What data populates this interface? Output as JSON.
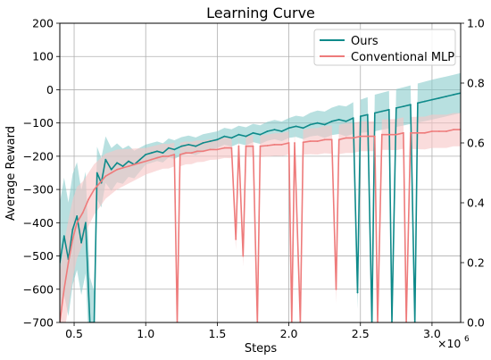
{
  "chart_data": {
    "type": "line",
    "title": "Learning Curve",
    "xlabel": "Steps",
    "ylabel": "Average Reward",
    "x_multiplier_label": "×10",
    "x_multiplier_exp": "6",
    "xlim": [
      0.4,
      3.2
    ],
    "ylim": [
      -700,
      200
    ],
    "y2lim": [
      0.0,
      1.0
    ],
    "xticks": [
      "0.5",
      "1.0",
      "1.5",
      "2.0",
      "2.5",
      "3.0"
    ],
    "yticks": [
      "200",
      "100",
      "0",
      "−100",
      "−200",
      "−300",
      "−400",
      "−500",
      "−600",
      "−700"
    ],
    "y2ticks": [
      "1.0",
      "0.8",
      "0.6",
      "0.4",
      "0.2",
      "0.0"
    ],
    "grid": true,
    "legend_position": "top-right",
    "series": [
      {
        "name": "Ours",
        "color": "#0e8a8a",
        "band_color": "#88cccc",
        "points": [
          [
            0.4,
            -520
          ],
          [
            0.43,
            -440
          ],
          [
            0.46,
            -510
          ],
          [
            0.49,
            -420
          ],
          [
            0.52,
            -380
          ],
          [
            0.55,
            -460
          ],
          [
            0.58,
            -400
          ],
          [
            0.61,
            -700
          ],
          [
            0.64,
            -700
          ],
          [
            0.66,
            -250
          ],
          [
            0.69,
            -280
          ],
          [
            0.72,
            -210
          ],
          [
            0.76,
            -240
          ],
          [
            0.8,
            -220
          ],
          [
            0.84,
            -230
          ],
          [
            0.88,
            -215
          ],
          [
            0.92,
            -225
          ],
          [
            0.96,
            -210
          ],
          [
            1.0,
            -195
          ],
          [
            1.04,
            -190
          ],
          [
            1.08,
            -185
          ],
          [
            1.12,
            -190
          ],
          [
            1.16,
            -175
          ],
          [
            1.2,
            -180
          ],
          [
            1.25,
            -170
          ],
          [
            1.3,
            -165
          ],
          [
            1.35,
            -170
          ],
          [
            1.4,
            -160
          ],
          [
            1.45,
            -155
          ],
          [
            1.5,
            -150
          ],
          [
            1.55,
            -140
          ],
          [
            1.6,
            -145
          ],
          [
            1.65,
            -135
          ],
          [
            1.7,
            -140
          ],
          [
            1.75,
            -130
          ],
          [
            1.8,
            -135
          ],
          [
            1.85,
            -125
          ],
          [
            1.9,
            -120
          ],
          [
            1.95,
            -125
          ],
          [
            2.0,
            -115
          ],
          [
            2.05,
            -110
          ],
          [
            2.1,
            -115
          ],
          [
            2.15,
            -105
          ],
          [
            2.2,
            -100
          ],
          [
            2.25,
            -105
          ],
          [
            2.3,
            -95
          ],
          [
            2.35,
            -90
          ],
          [
            2.4,
            -95
          ],
          [
            2.45,
            -85
          ],
          [
            2.48,
            -610
          ],
          [
            2.5,
            -80
          ],
          [
            2.55,
            -75
          ],
          [
            2.58,
            -700
          ],
          [
            2.6,
            -70
          ],
          [
            2.65,
            -65
          ],
          [
            2.7,
            -60
          ],
          [
            2.72,
            -700
          ],
          [
            2.75,
            -55
          ],
          [
            2.8,
            -50
          ],
          [
            2.85,
            -45
          ],
          [
            2.88,
            -700
          ],
          [
            2.9,
            -40
          ],
          [
            2.95,
            -35
          ],
          [
            3.0,
            -30
          ],
          [
            3.05,
            -25
          ],
          [
            3.1,
            -20
          ],
          [
            3.15,
            -15
          ],
          [
            3.2,
            -10
          ]
        ],
        "band_width": [
          [
            0.4,
            180
          ],
          [
            0.6,
            150
          ],
          [
            0.65,
            80
          ],
          [
            1.0,
            30
          ],
          [
            1.5,
            25
          ],
          [
            2.0,
            30
          ],
          [
            2.4,
            45
          ],
          [
            2.6,
            55
          ],
          [
            3.0,
            60
          ],
          [
            3.2,
            60
          ]
        ]
      },
      {
        "name": "Conventional MLP",
        "color": "#ee7b7b",
        "band_color": "#f7c4c4",
        "points": [
          [
            0.4,
            -700
          ],
          [
            0.43,
            -600
          ],
          [
            0.46,
            -520
          ],
          [
            0.49,
            -450
          ],
          [
            0.52,
            -400
          ],
          [
            0.56,
            -370
          ],
          [
            0.6,
            -330
          ],
          [
            0.64,
            -300
          ],
          [
            0.68,
            -280
          ],
          [
            0.72,
            -260
          ],
          [
            0.76,
            -250
          ],
          [
            0.8,
            -240
          ],
          [
            0.84,
            -235
          ],
          [
            0.88,
            -230
          ],
          [
            0.92,
            -225
          ],
          [
            0.96,
            -220
          ],
          [
            1.0,
            -215
          ],
          [
            1.04,
            -210
          ],
          [
            1.08,
            -205
          ],
          [
            1.12,
            -200
          ],
          [
            1.16,
            -200
          ],
          [
            1.2,
            -195
          ],
          [
            1.22,
            -700
          ],
          [
            1.24,
            -195
          ],
          [
            1.28,
            -190
          ],
          [
            1.32,
            -190
          ],
          [
            1.36,
            -185
          ],
          [
            1.4,
            -185
          ],
          [
            1.45,
            -180
          ],
          [
            1.5,
            -180
          ],
          [
            1.55,
            -175
          ],
          [
            1.6,
            -175
          ],
          [
            1.63,
            -450
          ],
          [
            1.65,
            -170
          ],
          [
            1.68,
            -500
          ],
          [
            1.7,
            -170
          ],
          [
            1.75,
            -170
          ],
          [
            1.78,
            -700
          ],
          [
            1.8,
            -170
          ],
          [
            1.85,
            -168
          ],
          [
            1.9,
            -165
          ],
          [
            1.95,
            -165
          ],
          [
            2.0,
            -160
          ],
          [
            2.02,
            -700
          ],
          [
            2.04,
            -160
          ],
          [
            2.08,
            -700
          ],
          [
            2.1,
            -158
          ],
          [
            2.15,
            -155
          ],
          [
            2.2,
            -155
          ],
          [
            2.25,
            -150
          ],
          [
            2.3,
            -150
          ],
          [
            2.33,
            -600
          ],
          [
            2.35,
            -150
          ],
          [
            2.4,
            -145
          ],
          [
            2.45,
            -145
          ],
          [
            2.5,
            -140
          ],
          [
            2.55,
            -140
          ],
          [
            2.6,
            -140
          ],
          [
            2.62,
            -700
          ],
          [
            2.65,
            -135
          ],
          [
            2.7,
            -135
          ],
          [
            2.75,
            -135
          ],
          [
            2.8,
            -130
          ],
          [
            2.82,
            -700
          ],
          [
            2.85,
            -130
          ],
          [
            2.9,
            -130
          ],
          [
            2.95,
            -130
          ],
          [
            3.0,
            -125
          ],
          [
            3.05,
            -125
          ],
          [
            3.1,
            -125
          ],
          [
            3.15,
            -120
          ],
          [
            3.2,
            -120
          ]
        ],
        "band_width": [
          [
            0.4,
            150
          ],
          [
            0.6,
            80
          ],
          [
            1.0,
            40
          ],
          [
            1.5,
            30
          ],
          [
            2.0,
            35
          ],
          [
            2.4,
            45
          ],
          [
            2.6,
            45
          ],
          [
            3.0,
            50
          ],
          [
            3.2,
            50
          ]
        ]
      }
    ]
  }
}
